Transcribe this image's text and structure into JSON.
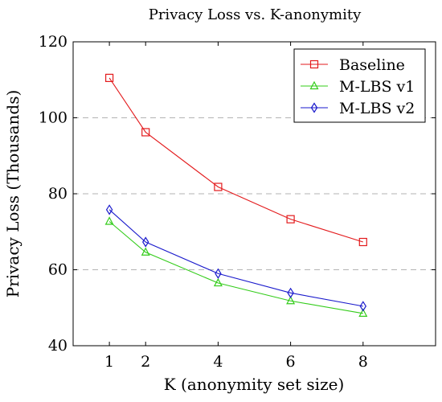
{
  "chart_data": {
    "type": "line",
    "title": "Privacy Loss vs. K-anonymity",
    "xlabel": "K (anonymity set size)",
    "ylabel": "Privacy Loss (Thousands)",
    "x": [
      1,
      2,
      4,
      6,
      8
    ],
    "xticks": [
      "1",
      "2",
      "4",
      "6",
      "8"
    ],
    "xlim": [
      0,
      10
    ],
    "ylim": [
      40,
      120
    ],
    "yticks": [
      "40",
      "60",
      "80",
      "100",
      "120"
    ],
    "ytick_values": [
      40,
      60,
      80,
      100,
      120
    ],
    "grid": "horizontal dashed at 60, 80, 100",
    "legend_position": "top-right",
    "series": [
      {
        "name": "Baseline",
        "values": [
          110.5,
          96.2,
          81.8,
          73.3,
          67.3
        ],
        "color": "#e31a1c",
        "marker": "square"
      },
      {
        "name": "M-LBS v1",
        "values": [
          72.7,
          64.6,
          56.5,
          51.8,
          48.5
        ],
        "color": "#33cc1a",
        "marker": "triangle"
      },
      {
        "name": "M-LBS v2",
        "values": [
          75.8,
          67.3,
          59.0,
          53.9,
          50.4
        ],
        "color": "#1a1acc",
        "marker": "diamond"
      }
    ]
  }
}
